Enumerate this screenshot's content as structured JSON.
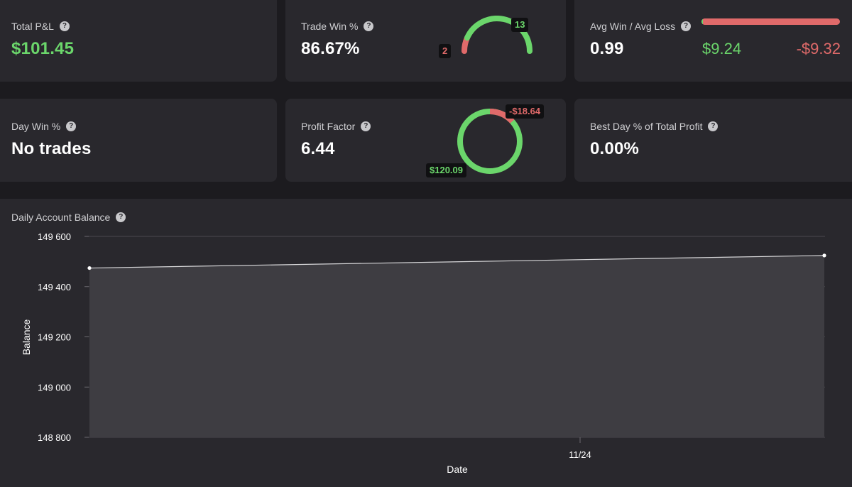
{
  "cards": {
    "total_pl": {
      "label": "Total P&L",
      "value": "$101.45",
      "value_color": "#6bd66b"
    },
    "trade_win": {
      "label": "Trade Win %",
      "value": "86.67%",
      "wins": "13",
      "losses": "2",
      "win_fraction": 0.8667
    },
    "avg_win_loss": {
      "label": "Avg Win / Avg Loss",
      "value": "0.99",
      "avg_win": "$9.24",
      "avg_loss": "-$9.32",
      "win_bar_fraction": 0.01
    },
    "day_win": {
      "label": "Day Win %",
      "value": "No trades"
    },
    "profit_factor": {
      "label": "Profit Factor",
      "value": "6.44",
      "gross_profit": "$120.09",
      "gross_loss": "-$18.64",
      "loss_fraction": 0.1344
    },
    "best_day": {
      "label": "Best Day % of Total Profit",
      "value": "0.00%"
    }
  },
  "balance_chart": {
    "label": "Daily Account Balance"
  },
  "colors": {
    "green": "#6bd66b",
    "red": "#e06a6a",
    "card_bg": "#29282d",
    "page_bg": "#1c1b1f"
  },
  "icons": {
    "help": "question-circle-icon"
  },
  "chart_data": {
    "type": "area",
    "title": "",
    "xlabel": "Date",
    "ylabel": "Balance",
    "x_tick_labels": [
      "11/24"
    ],
    "y_tick_labels": [
      "149 600",
      "149 400",
      "149 200",
      "149 000",
      "148 800"
    ],
    "y_ticks": [
      149600,
      149400,
      149200,
      149000,
      148800
    ],
    "ylim": [
      148800,
      149600
    ],
    "grid": true,
    "series": [
      {
        "values": [
          149474,
          149524
        ]
      }
    ]
  }
}
